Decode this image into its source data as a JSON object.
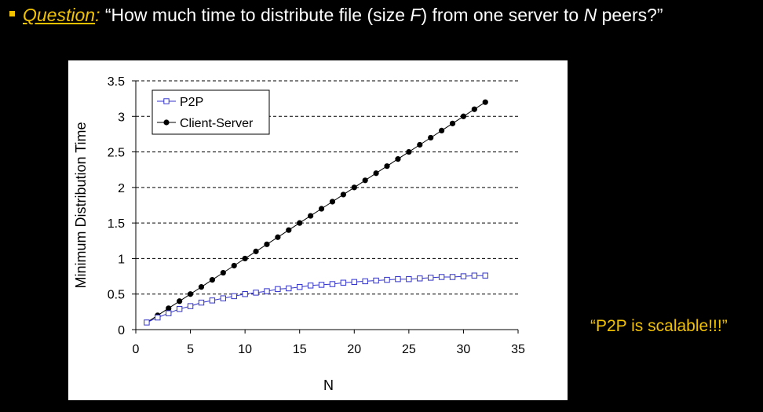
{
  "question": {
    "label": "Question",
    "colon": ":",
    "text_open": "“How much time to distribute file (size ",
    "var_f": "F",
    "text_mid": ") from one server to ",
    "var_n": "N",
    "text_close": "  peers?”"
  },
  "note": "“P2P is scalable!!!”",
  "colors": {
    "accent": "#f2c200",
    "p2p": "#3333cc",
    "client_server": "#000000",
    "background": "#000000",
    "panel": "#ffffff"
  },
  "chart_data": {
    "type": "line",
    "title": "",
    "xlabel": "N",
    "ylabel": "Minimum Distribution Time",
    "xlim": [
      0,
      35
    ],
    "ylim": [
      0,
      3.5
    ],
    "xticks": [
      0,
      5,
      10,
      15,
      20,
      25,
      30,
      35
    ],
    "yticks": [
      0,
      0.5,
      1,
      1.5,
      2,
      2.5,
      3,
      3.5
    ],
    "ytick_labels": [
      "0",
      "0.5",
      "1",
      "1.5",
      "2",
      "2.5",
      "3",
      "3.5"
    ],
    "grid": "horizontal dashed",
    "legend_position": "top-left",
    "x": [
      1,
      2,
      3,
      4,
      5,
      6,
      7,
      8,
      9,
      10,
      11,
      12,
      13,
      14,
      15,
      16,
      17,
      18,
      19,
      20,
      21,
      22,
      23,
      24,
      25,
      26,
      27,
      28,
      29,
      30,
      31,
      32
    ],
    "series": [
      {
        "name": "P2P",
        "marker": "open-square",
        "color": "#3333cc",
        "values": [
          0.1,
          0.17,
          0.23,
          0.29,
          0.33,
          0.38,
          0.41,
          0.44,
          0.47,
          0.5,
          0.52,
          0.54,
          0.57,
          0.58,
          0.6,
          0.62,
          0.63,
          0.64,
          0.66,
          0.67,
          0.68,
          0.69,
          0.7,
          0.71,
          0.71,
          0.72,
          0.73,
          0.74,
          0.74,
          0.75,
          0.76,
          0.76
        ]
      },
      {
        "name": "Client-Server",
        "marker": "filled-circle",
        "color": "#000000",
        "values": [
          0.1,
          0.2,
          0.3,
          0.4,
          0.5,
          0.6,
          0.7,
          0.8,
          0.9,
          1.0,
          1.1,
          1.2,
          1.3,
          1.4,
          1.5,
          1.6,
          1.7,
          1.8,
          1.9,
          2.0,
          2.1,
          2.2,
          2.3,
          2.4,
          2.5,
          2.6,
          2.7,
          2.8,
          2.9,
          3.0,
          3.1,
          3.2
        ]
      }
    ]
  }
}
